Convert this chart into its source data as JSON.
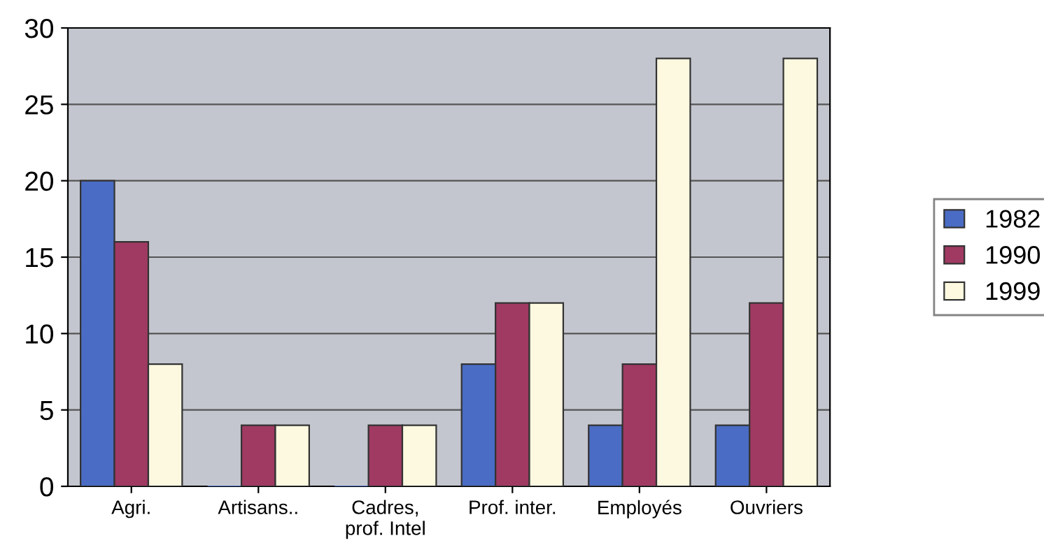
{
  "chart_data": {
    "type": "bar",
    "categories": [
      "Agri.",
      "Artisans..",
      "Cadres,\nprof. Intel",
      "Prof. inter.",
      "Employés",
      "Ouvriers"
    ],
    "series": [
      {
        "name": "1982",
        "color": "#4a6cc4",
        "values": [
          20,
          0,
          0,
          8,
          4,
          4
        ]
      },
      {
        "name": "1990",
        "color": "#a03a62",
        "values": [
          16,
          4,
          4,
          12,
          8,
          12
        ]
      },
      {
        "name": "1999",
        "color": "#fcf9e0",
        "values": [
          8,
          4,
          4,
          12,
          28,
          28
        ]
      }
    ],
    "ylim": [
      0,
      30
    ],
    "yticks": [
      0,
      5,
      10,
      15,
      20,
      25,
      30
    ],
    "grid": "y",
    "legend": "right"
  }
}
